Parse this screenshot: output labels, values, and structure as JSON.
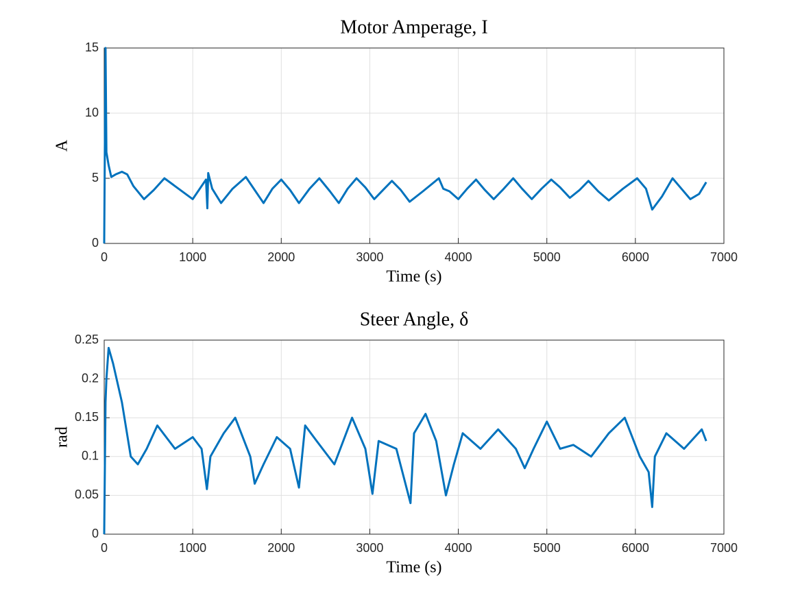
{
  "chart_data": [
    {
      "type": "line",
      "title": "Motor Amperage, I",
      "xlabel": "Time (s)",
      "ylabel": "A",
      "color": "#0072bd",
      "grid": true,
      "x": [
        0,
        15,
        25,
        50,
        80,
        130,
        200,
        260,
        330,
        450,
        560,
        680,
        800,
        1000,
        1150,
        1165,
        1175,
        1220,
        1320,
        1450,
        1600,
        1700,
        1800,
        1900,
        2000,
        2100,
        2200,
        2320,
        2430,
        2550,
        2650,
        2750,
        2850,
        2950,
        3050,
        3150,
        3250,
        3350,
        3450,
        3600,
        3780,
        3830,
        3900,
        4000,
        4100,
        4200,
        4300,
        4400,
        4500,
        4620,
        4720,
        4830,
        4940,
        5050,
        5150,
        5260,
        5370,
        5470,
        5580,
        5700,
        5860,
        6020,
        6120,
        6190,
        6300,
        6420,
        6520,
        6620,
        6720,
        6800
      ],
      "values": [
        0,
        15,
        7,
        6,
        5.1,
        5.3,
        5.5,
        5.3,
        4.4,
        3.4,
        4.1,
        5.0,
        4.4,
        3.4,
        4.9,
        2.7,
        5.4,
        4.2,
        3.1,
        4.2,
        5.1,
        4.1,
        3.1,
        4.2,
        4.9,
        4.1,
        3.1,
        4.2,
        5.0,
        4.0,
        3.1,
        4.2,
        5.0,
        4.3,
        3.4,
        4.1,
        4.8,
        4.1,
        3.2,
        4.0,
        5.0,
        4.2,
        4.0,
        3.4,
        4.2,
        4.9,
        4.1,
        3.4,
        4.1,
        5.0,
        4.2,
        3.4,
        4.2,
        4.9,
        4.3,
        3.5,
        4.1,
        4.8,
        4.0,
        3.3,
        4.2,
        5.0,
        4.2,
        2.6,
        3.6,
        5.0,
        4.2,
        3.4,
        3.8,
        4.7
      ],
      "xlim": [
        0,
        7000
      ],
      "xticks": [
        0,
        1000,
        2000,
        3000,
        4000,
        5000,
        6000,
        7000
      ],
      "ylim": [
        0,
        15
      ],
      "yticks": [
        0,
        5,
        10,
        15
      ]
    },
    {
      "type": "line",
      "title": "Steer Angle, δ",
      "xlabel": "Time (s)",
      "ylabel": "rad",
      "color": "#0072bd",
      "grid": true,
      "x": [
        0,
        15,
        25,
        50,
        100,
        200,
        300,
        380,
        480,
        600,
        700,
        800,
        1000,
        1100,
        1160,
        1200,
        1350,
        1480,
        1650,
        1700,
        1800,
        1950,
        2100,
        2200,
        2270,
        2400,
        2600,
        2800,
        2950,
        3030,
        3100,
        3300,
        3460,
        3500,
        3630,
        3750,
        3860,
        3950,
        4050,
        4250,
        4450,
        4650,
        4750,
        4850,
        5000,
        5150,
        5300,
        5500,
        5700,
        5880,
        6050,
        6150,
        6190,
        6220,
        6350,
        6550,
        6750,
        6800
      ],
      "values": [
        0,
        0.17,
        0.2,
        0.24,
        0.22,
        0.17,
        0.1,
        0.09,
        0.11,
        0.14,
        0.125,
        0.11,
        0.125,
        0.11,
        0.058,
        0.1,
        0.13,
        0.15,
        0.1,
        0.065,
        0.09,
        0.125,
        0.11,
        0.06,
        0.14,
        0.12,
        0.09,
        0.15,
        0.11,
        0.052,
        0.12,
        0.11,
        0.04,
        0.13,
        0.155,
        0.12,
        0.05,
        0.09,
        0.13,
        0.11,
        0.135,
        0.11,
        0.085,
        0.11,
        0.145,
        0.11,
        0.115,
        0.1,
        0.13,
        0.15,
        0.1,
        0.08,
        0.035,
        0.1,
        0.13,
        0.11,
        0.135,
        0.12
      ],
      "xlim": [
        0,
        7000
      ],
      "xticks": [
        0,
        1000,
        2000,
        3000,
        4000,
        5000,
        6000,
        7000
      ],
      "ylim": [
        0,
        0.25
      ],
      "yticks": [
        0,
        0.05,
        0.1,
        0.15,
        0.2,
        0.25
      ]
    }
  ]
}
